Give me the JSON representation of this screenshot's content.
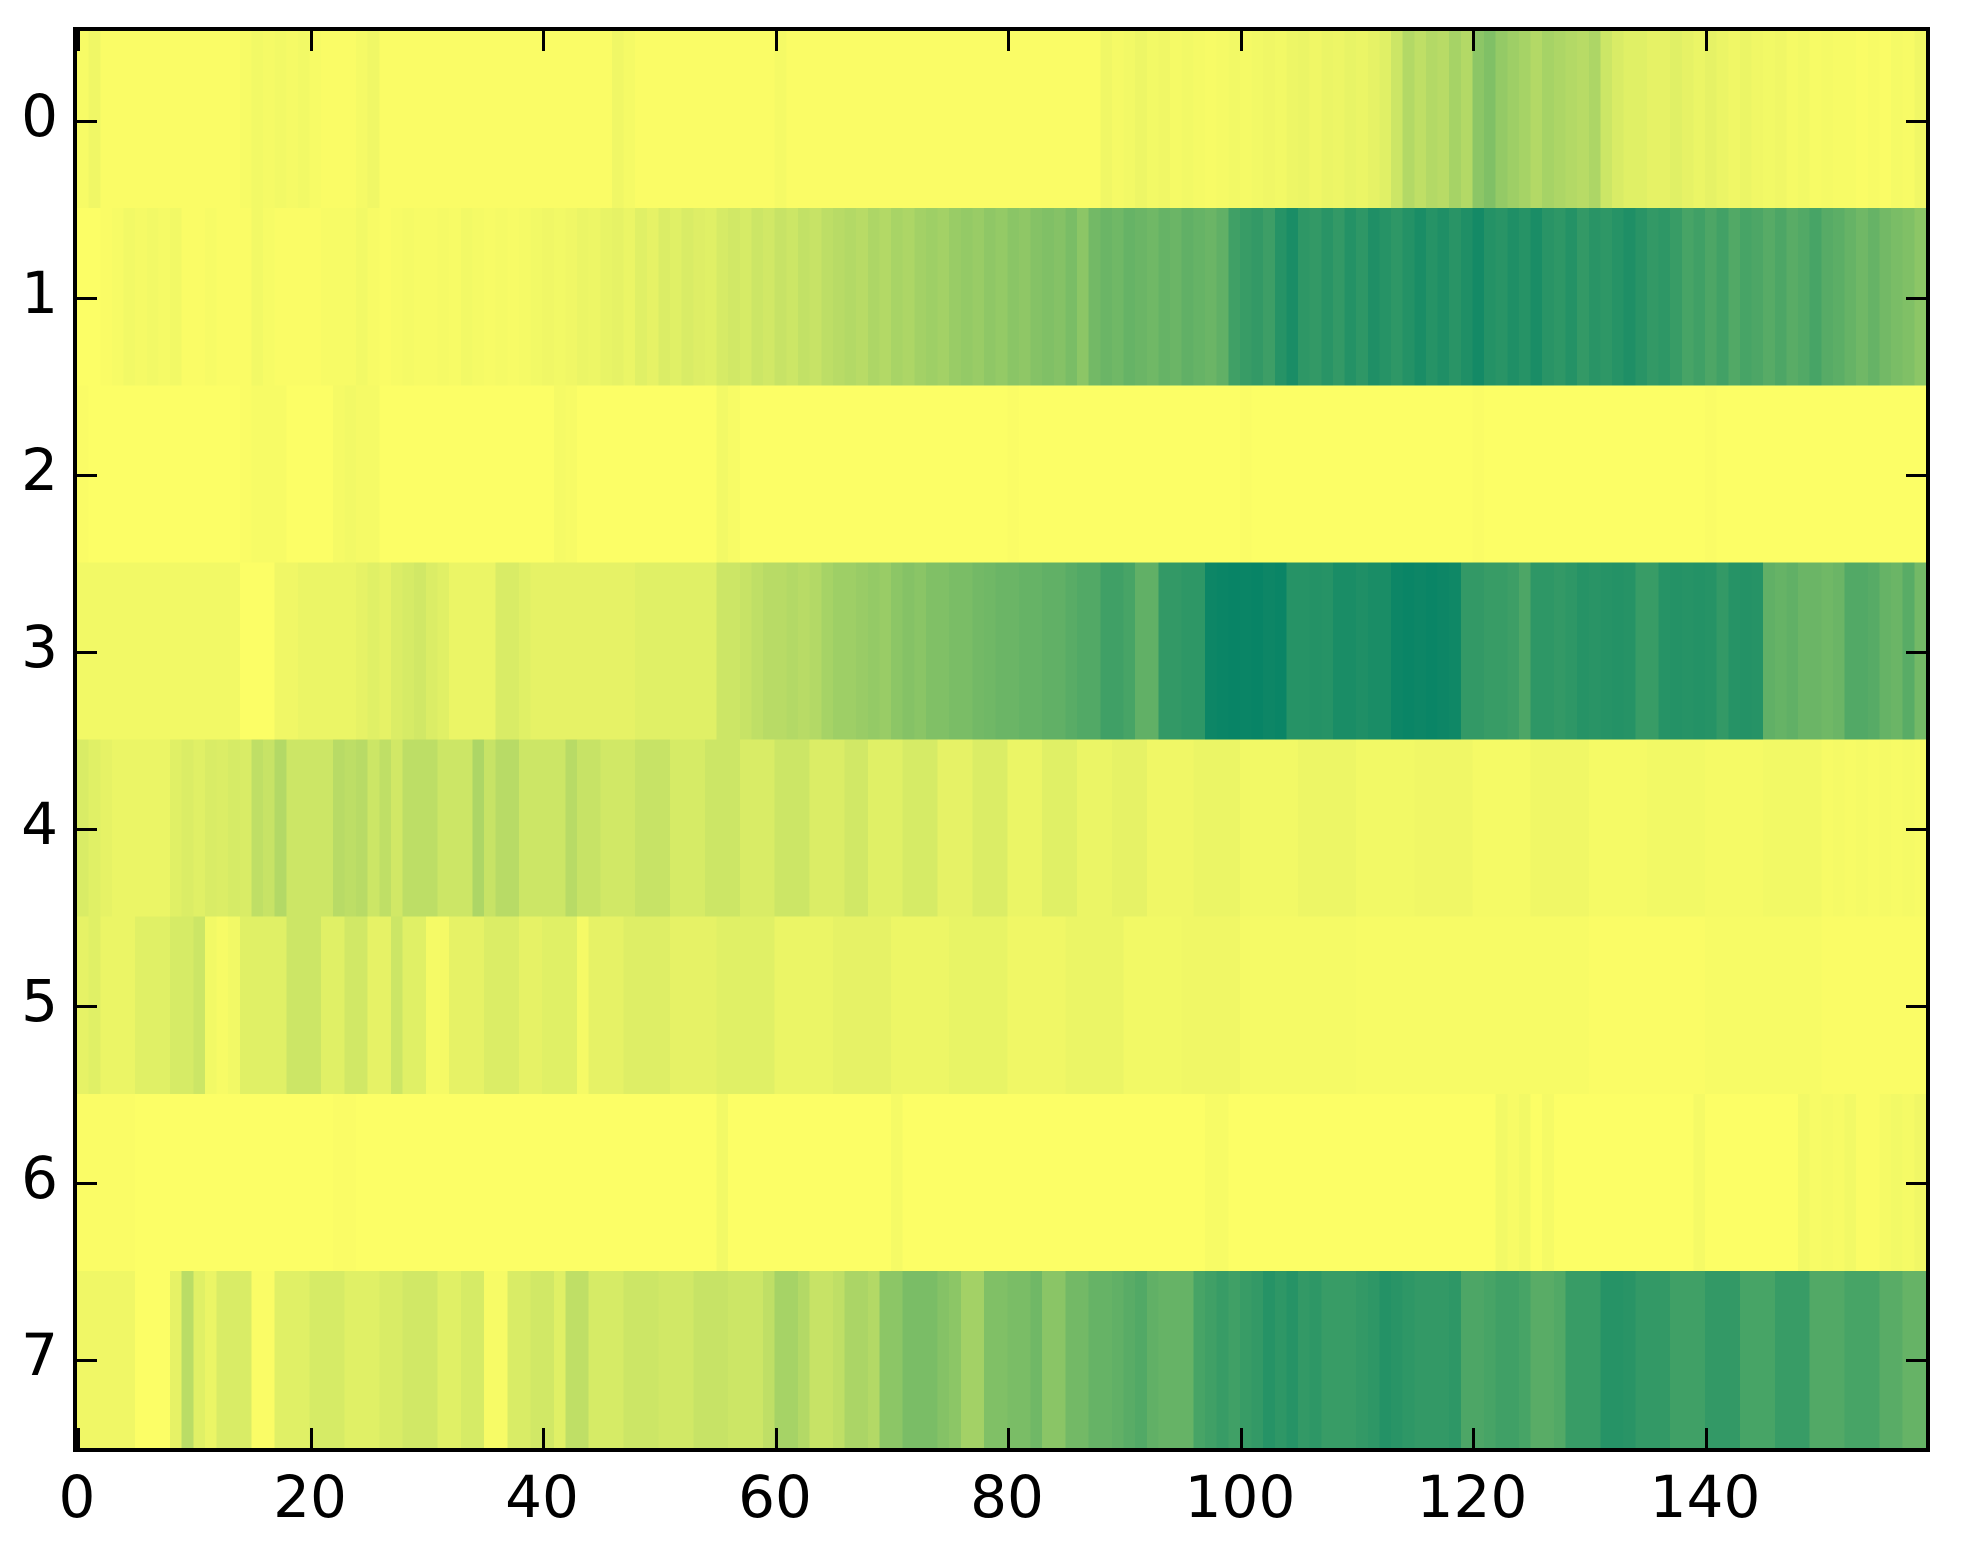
{
  "figure": {
    "background": "#ffffff",
    "border_color": "#000000"
  },
  "chart_data": {
    "type": "heatmap",
    "n_rows": 8,
    "n_cols": 159,
    "xlim": [
      0,
      159
    ],
    "x_ticks": [
      0,
      20,
      40,
      60,
      80,
      100,
      120,
      140
    ],
    "y_ticks": [
      "0",
      "1",
      "2",
      "3",
      "4",
      "5",
      "6",
      "7"
    ],
    "grid": false,
    "legend": "none",
    "colormap": {
      "name": "summer_r",
      "low": "#ffff66",
      "high": "#008066"
    },
    "values": [
      [
        0.03,
        0.06,
        0.02,
        0.02,
        0.02,
        0.02,
        0.02,
        0.02,
        0.02,
        0.02,
        0.02,
        0.02,
        0.02,
        0.02,
        0.03,
        0.05,
        0.04,
        0.05,
        0.04,
        0.05,
        0.03,
        0.02,
        0.02,
        0.02,
        0.04,
        0.06,
        0.02,
        0.02,
        0.02,
        0.02,
        0.02,
        0.02,
        0.02,
        0.02,
        0.02,
        0.02,
        0.02,
        0.02,
        0.02,
        0.02,
        0.02,
        0.02,
        0.02,
        0.02,
        0.02,
        0.02,
        0.06,
        0.04,
        0.02,
        0.02,
        0.02,
        0.02,
        0.02,
        0.02,
        0.02,
        0.02,
        0.02,
        0.02,
        0.02,
        0.02,
        0.04,
        0.02,
        0.02,
        0.02,
        0.02,
        0.02,
        0.02,
        0.02,
        0.02,
        0.02,
        0.02,
        0.02,
        0.02,
        0.02,
        0.02,
        0.02,
        0.02,
        0.02,
        0.02,
        0.02,
        0.02,
        0.02,
        0.02,
        0.02,
        0.02,
        0.02,
        0.02,
        0.02,
        0.06,
        0.04,
        0.05,
        0.07,
        0.05,
        0.06,
        0.04,
        0.05,
        0.04,
        0.03,
        0.04,
        0.05,
        0.04,
        0.05,
        0.06,
        0.05,
        0.07,
        0.08,
        0.06,
        0.08,
        0.07,
        0.09,
        0.08,
        0.1,
        0.12,
        0.2,
        0.3,
        0.25,
        0.3,
        0.28,
        0.35,
        0.3,
        0.45,
        0.5,
        0.42,
        0.38,
        0.35,
        0.3,
        0.35,
        0.32,
        0.3,
        0.28,
        0.32,
        0.2,
        0.15,
        0.12,
        0.12,
        0.1,
        0.1,
        0.12,
        0.1,
        0.08,
        0.1,
        0.08,
        0.06,
        0.08,
        0.06,
        0.05,
        0.06,
        0.04,
        0.05,
        0.03,
        0.04,
        0.03,
        0.03,
        0.02,
        0.03,
        0.02,
        0.04,
        0.03,
        0.06
      ],
      [
        0.01,
        0.01,
        0.02,
        0.03,
        0.05,
        0.04,
        0.05,
        0.04,
        0.05,
        0.02,
        0.02,
        0.03,
        0.02,
        0.02,
        0.02,
        0.05,
        0.03,
        0.02,
        0.02,
        0.02,
        0.02,
        0.03,
        0.03,
        0.03,
        0.05,
        0.03,
        0.02,
        0.03,
        0.04,
        0.03,
        0.03,
        0.04,
        0.03,
        0.05,
        0.04,
        0.03,
        0.04,
        0.03,
        0.04,
        0.05,
        0.06,
        0.05,
        0.06,
        0.08,
        0.07,
        0.09,
        0.1,
        0.08,
        0.12,
        0.1,
        0.14,
        0.12,
        0.15,
        0.13,
        0.12,
        0.16,
        0.18,
        0.16,
        0.2,
        0.18,
        0.22,
        0.2,
        0.24,
        0.22,
        0.26,
        0.28,
        0.3,
        0.28,
        0.32,
        0.3,
        0.34,
        0.32,
        0.36,
        0.38,
        0.36,
        0.4,
        0.42,
        0.4,
        0.44,
        0.42,
        0.46,
        0.44,
        0.48,
        0.5,
        0.48,
        0.52,
        0.45,
        0.55,
        0.58,
        0.56,
        0.6,
        0.58,
        0.56,
        0.6,
        0.58,
        0.62,
        0.6,
        0.58,
        0.62,
        0.75,
        0.78,
        0.8,
        0.76,
        0.85,
        0.9,
        0.82,
        0.8,
        0.84,
        0.8,
        0.86,
        0.82,
        0.88,
        0.85,
        0.82,
        0.86,
        0.9,
        0.85,
        0.88,
        0.84,
        0.88,
        0.92,
        0.86,
        0.84,
        0.88,
        0.85,
        0.9,
        0.84,
        0.82,
        0.86,
        0.8,
        0.84,
        0.82,
        0.85,
        0.88,
        0.84,
        0.8,
        0.82,
        0.78,
        0.72,
        0.75,
        0.7,
        0.74,
        0.68,
        0.72,
        0.7,
        0.66,
        0.7,
        0.65,
        0.68,
        0.72,
        0.66,
        0.64,
        0.6,
        0.56,
        0.6,
        0.55,
        0.52,
        0.5,
        0.45
      ],
      [
        0.02,
        0.01,
        0.01,
        0.01,
        0.01,
        0.01,
        0.01,
        0.01,
        0.01,
        0.01,
        0.01,
        0.01,
        0.01,
        0.01,
        0.02,
        0.03,
        0.03,
        0.03,
        0.01,
        0.01,
        0.01,
        0.01,
        0.04,
        0.05,
        0.04,
        0.04,
        0.01,
        0.01,
        0.01,
        0.01,
        0.01,
        0.01,
        0.01,
        0.01,
        0.01,
        0.01,
        0.01,
        0.01,
        0.01,
        0.01,
        0.01,
        0.04,
        0.03,
        0.01,
        0.01,
        0.01,
        0.01,
        0.01,
        0.01,
        0.01,
        0.01,
        0.01,
        0.01,
        0.01,
        0.01,
        0.05,
        0.03,
        0.01,
        0.01,
        0.01,
        0.01,
        0.01,
        0.01,
        0.01,
        0.01,
        0.01,
        0.01,
        0.01,
        0.01,
        0.01,
        0.01,
        0.01,
        0.01,
        0.01,
        0.01,
        0.01,
        0.01,
        0.01,
        0.01,
        0.01,
        0.02,
        0.01,
        0.01,
        0.01,
        0.01,
        0.01,
        0.01,
        0.01,
        0.01,
        0.01,
        0.01,
        0.01,
        0.01,
        0.01,
        0.01,
        0.01,
        0.01,
        0.01,
        0.01,
        0.01,
        0.02,
        0.01,
        0.01,
        0.01,
        0.01,
        0.01,
        0.01,
        0.01,
        0.01,
        0.01,
        0.01,
        0.01,
        0.01,
        0.01,
        0.01,
        0.01,
        0.01,
        0.01,
        0.01,
        0.01,
        0.02,
        0.01,
        0.01,
        0.01,
        0.01,
        0.01,
        0.01,
        0.01,
        0.01,
        0.01,
        0.01,
        0.01,
        0.01,
        0.01,
        0.01,
        0.01,
        0.01,
        0.01,
        0.01,
        0.01,
        0.02,
        0.01,
        0.01,
        0.01,
        0.01,
        0.01,
        0.01,
        0.01,
        0.01,
        0.01,
        0.01,
        0.01,
        0.01,
        0.01,
        0.01,
        0.01,
        0.01,
        0.01,
        0.01
      ],
      [
        0.05,
        0.05,
        0.05,
        0.05,
        0.05,
        0.05,
        0.05,
        0.05,
        0.05,
        0.05,
        0.05,
        0.05,
        0.05,
        0.05,
        0.01,
        0.01,
        0.01,
        0.06,
        0.06,
        0.08,
        0.08,
        0.08,
        0.08,
        0.08,
        0.1,
        0.12,
        0.1,
        0.14,
        0.16,
        0.18,
        0.14,
        0.12,
        0.08,
        0.08,
        0.08,
        0.08,
        0.15,
        0.15,
        0.12,
        0.1,
        0.1,
        0.1,
        0.1,
        0.1,
        0.1,
        0.1,
        0.1,
        0.1,
        0.12,
        0.12,
        0.12,
        0.12,
        0.12,
        0.12,
        0.12,
        0.2,
        0.2,
        0.22,
        0.25,
        0.28,
        0.28,
        0.3,
        0.28,
        0.3,
        0.35,
        0.38,
        0.38,
        0.4,
        0.42,
        0.4,
        0.45,
        0.48,
        0.46,
        0.5,
        0.5,
        0.52,
        0.52,
        0.55,
        0.56,
        0.58,
        0.58,
        0.6,
        0.6,
        0.62,
        0.62,
        0.65,
        0.68,
        0.68,
        0.75,
        0.75,
        0.72,
        0.62,
        0.62,
        0.8,
        0.8,
        0.82,
        0.82,
        0.95,
        0.96,
        0.97,
        0.96,
        0.97,
        0.95,
        0.96,
        0.85,
        0.85,
        0.86,
        0.85,
        0.9,
        0.9,
        0.88,
        0.9,
        0.9,
        0.95,
        0.96,
        0.95,
        0.96,
        0.95,
        0.94,
        0.8,
        0.8,
        0.78,
        0.78,
        0.76,
        0.7,
        0.82,
        0.82,
        0.8,
        0.82,
        0.85,
        0.84,
        0.85,
        0.86,
        0.85,
        0.78,
        0.78,
        0.85,
        0.86,
        0.85,
        0.86,
        0.85,
        0.8,
        0.85,
        0.86,
        0.85,
        0.62,
        0.6,
        0.62,
        0.58,
        0.58,
        0.56,
        0.58,
        0.68,
        0.68,
        0.66,
        0.6,
        0.58,
        0.65,
        0.55
      ],
      [
        0.15,
        0.12,
        0.1,
        0.08,
        0.08,
        0.08,
        0.08,
        0.08,
        0.12,
        0.14,
        0.12,
        0.15,
        0.14,
        0.16,
        0.15,
        0.25,
        0.22,
        0.3,
        0.2,
        0.2,
        0.2,
        0.2,
        0.28,
        0.26,
        0.28,
        0.2,
        0.25,
        0.18,
        0.26,
        0.26,
        0.26,
        0.2,
        0.2,
        0.2,
        0.32,
        0.22,
        0.28,
        0.28,
        0.2,
        0.2,
        0.2,
        0.2,
        0.28,
        0.22,
        0.22,
        0.18,
        0.18,
        0.18,
        0.22,
        0.22,
        0.22,
        0.16,
        0.16,
        0.16,
        0.2,
        0.2,
        0.2,
        0.15,
        0.15,
        0.15,
        0.2,
        0.2,
        0.2,
        0.14,
        0.14,
        0.14,
        0.18,
        0.18,
        0.12,
        0.12,
        0.12,
        0.16,
        0.16,
        0.16,
        0.1,
        0.1,
        0.1,
        0.14,
        0.14,
        0.14,
        0.08,
        0.08,
        0.08,
        0.12,
        0.12,
        0.12,
        0.08,
        0.08,
        0.08,
        0.1,
        0.1,
        0.1,
        0.06,
        0.06,
        0.06,
        0.06,
        0.08,
        0.08,
        0.08,
        0.08,
        0.05,
        0.05,
        0.05,
        0.05,
        0.05,
        0.07,
        0.07,
        0.07,
        0.07,
        0.07,
        0.05,
        0.05,
        0.05,
        0.05,
        0.05,
        0.06,
        0.06,
        0.06,
        0.06,
        0.06,
        0.04,
        0.04,
        0.04,
        0.04,
        0.04,
        0.06,
        0.06,
        0.06,
        0.06,
        0.06,
        0.04,
        0.04,
        0.04,
        0.04,
        0.04,
        0.05,
        0.05,
        0.05,
        0.05,
        0.05,
        0.04,
        0.04,
        0.04,
        0.04,
        0.04,
        0.05,
        0.05,
        0.05,
        0.05,
        0.05,
        0.03,
        0.04,
        0.03,
        0.04,
        0.03,
        0.04,
        0.03,
        0.04,
        0.03
      ],
      [
        0.1,
        0.12,
        0.08,
        0.08,
        0.08,
        0.12,
        0.12,
        0.12,
        0.16,
        0.16,
        0.2,
        0.05,
        0.03,
        0.05,
        0.12,
        0.12,
        0.12,
        0.12,
        0.2,
        0.2,
        0.2,
        0.12,
        0.12,
        0.18,
        0.18,
        0.1,
        0.1,
        0.2,
        0.12,
        0.12,
        0.04,
        0.04,
        0.1,
        0.1,
        0.1,
        0.14,
        0.14,
        0.14,
        0.1,
        0.1,
        0.12,
        0.12,
        0.12,
        0.04,
        0.1,
        0.1,
        0.1,
        0.13,
        0.13,
        0.13,
        0.13,
        0.1,
        0.1,
        0.1,
        0.1,
        0.12,
        0.12,
        0.12,
        0.12,
        0.12,
        0.08,
        0.08,
        0.08,
        0.08,
        0.08,
        0.1,
        0.1,
        0.1,
        0.1,
        0.1,
        0.07,
        0.07,
        0.07,
        0.07,
        0.07,
        0.09,
        0.09,
        0.09,
        0.09,
        0.09,
        0.06,
        0.06,
        0.06,
        0.06,
        0.06,
        0.08,
        0.08,
        0.08,
        0.08,
        0.08,
        0.05,
        0.05,
        0.05,
        0.05,
        0.05,
        0.06,
        0.06,
        0.06,
        0.06,
        0.06,
        0.04,
        0.04,
        0.04,
        0.04,
        0.04,
        0.04,
        0.04,
        0.04,
        0.04,
        0.04,
        0.03,
        0.03,
        0.03,
        0.03,
        0.03,
        0.03,
        0.03,
        0.03,
        0.03,
        0.03,
        0.03,
        0.03,
        0.03,
        0.03,
        0.03,
        0.03,
        0.03,
        0.03,
        0.03,
        0.03,
        0.02,
        0.02,
        0.02,
        0.02,
        0.02,
        0.02,
        0.02,
        0.02,
        0.02,
        0.02,
        0.03,
        0.03,
        0.03,
        0.03,
        0.03,
        0.03,
        0.03,
        0.03,
        0.03,
        0.03,
        0.02,
        0.02,
        0.02,
        0.02,
        0.02,
        0.02,
        0.02,
        0.02,
        0.02
      ],
      [
        0.02,
        0.02,
        0.02,
        0.02,
        0.02,
        0.01,
        0.01,
        0.01,
        0.01,
        0.01,
        0.01,
        0.01,
        0.01,
        0.01,
        0.01,
        0.01,
        0.01,
        0.01,
        0.01,
        0.01,
        0.01,
        0.01,
        0.02,
        0.02,
        0.01,
        0.01,
        0.01,
        0.01,
        0.01,
        0.01,
        0.01,
        0.01,
        0.01,
        0.01,
        0.01,
        0.01,
        0.01,
        0.01,
        0.01,
        0.01,
        0.01,
        0.01,
        0.01,
        0.01,
        0.01,
        0.01,
        0.01,
        0.01,
        0.01,
        0.01,
        0.01,
        0.01,
        0.01,
        0.01,
        0.01,
        0.05,
        0.01,
        0.01,
        0.01,
        0.01,
        0.01,
        0.01,
        0.01,
        0.01,
        0.01,
        0.01,
        0.01,
        0.01,
        0.01,
        0.01,
        0.04,
        0.01,
        0.01,
        0.01,
        0.01,
        0.01,
        0.01,
        0.01,
        0.01,
        0.01,
        0.01,
        0.01,
        0.01,
        0.01,
        0.01,
        0.01,
        0.01,
        0.01,
        0.01,
        0.01,
        0.01,
        0.01,
        0.01,
        0.01,
        0.01,
        0.01,
        0.01,
        0.03,
        0.03,
        0.01,
        0.01,
        0.01,
        0.01,
        0.01,
        0.01,
        0.01,
        0.01,
        0.01,
        0.01,
        0.01,
        0.01,
        0.01,
        0.01,
        0.01,
        0.01,
        0.01,
        0.01,
        0.01,
        0.01,
        0.01,
        0.01,
        0.01,
        0.05,
        0.03,
        0.05,
        0.01,
        0.04,
        0.01,
        0.01,
        0.01,
        0.01,
        0.01,
        0.01,
        0.01,
        0.01,
        0.01,
        0.01,
        0.01,
        0.01,
        0.04,
        0.01,
        0.01,
        0.01,
        0.01,
        0.01,
        0.01,
        0.01,
        0.01,
        0.05,
        0.03,
        0.04,
        0.03,
        0.05,
        0.02,
        0.02,
        0.04,
        0.05,
        0.04,
        0.06
      ],
      [
        0.06,
        0.06,
        0.06,
        0.06,
        0.06,
        0.01,
        0.01,
        0.01,
        0.1,
        0.27,
        0.12,
        0.08,
        0.15,
        0.15,
        0.15,
        0.02,
        0.02,
        0.12,
        0.12,
        0.12,
        0.16,
        0.16,
        0.16,
        0.12,
        0.12,
        0.12,
        0.15,
        0.15,
        0.18,
        0.18,
        0.18,
        0.12,
        0.12,
        0.16,
        0.16,
        0.03,
        0.03,
        0.15,
        0.15,
        0.18,
        0.18,
        0.12,
        0.25,
        0.25,
        0.16,
        0.16,
        0.16,
        0.2,
        0.2,
        0.2,
        0.18,
        0.18,
        0.18,
        0.22,
        0.22,
        0.22,
        0.2,
        0.2,
        0.2,
        0.25,
        0.35,
        0.35,
        0.3,
        0.22,
        0.22,
        0.25,
        0.33,
        0.33,
        0.3,
        0.45,
        0.45,
        0.52,
        0.52,
        0.52,
        0.48,
        0.45,
        0.36,
        0.36,
        0.5,
        0.5,
        0.52,
        0.52,
        0.56,
        0.46,
        0.46,
        0.55,
        0.55,
        0.6,
        0.6,
        0.62,
        0.65,
        0.68,
        0.62,
        0.6,
        0.6,
        0.6,
        0.72,
        0.75,
        0.78,
        0.75,
        0.78,
        0.8,
        0.85,
        0.82,
        0.85,
        0.8,
        0.82,
        0.78,
        0.78,
        0.78,
        0.8,
        0.82,
        0.86,
        0.84,
        0.82,
        0.8,
        0.8,
        0.8,
        0.82,
        0.7,
        0.7,
        0.72,
        0.75,
        0.75,
        0.72,
        0.65,
        0.65,
        0.68,
        0.78,
        0.78,
        0.78,
        0.85,
        0.85,
        0.84,
        0.8,
        0.8,
        0.8,
        0.75,
        0.75,
        0.75,
        0.8,
        0.8,
        0.8,
        0.72,
        0.72,
        0.72,
        0.78,
        0.78,
        0.78,
        0.68,
        0.68,
        0.68,
        0.72,
        0.72,
        0.72,
        0.65,
        0.65,
        0.6,
        0.6
      ]
    ]
  }
}
